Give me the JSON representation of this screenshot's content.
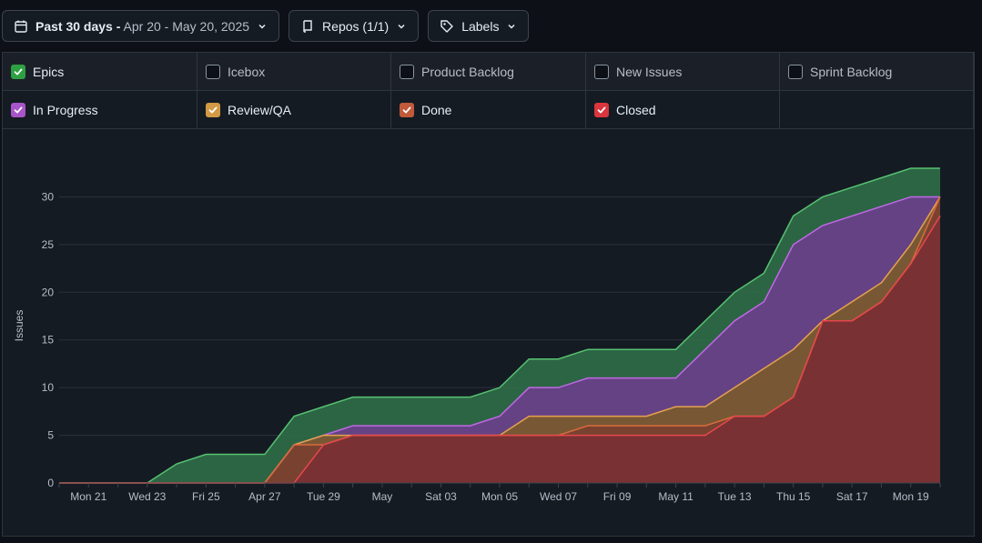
{
  "toolbar": {
    "date_range_label": "Past 30 days -",
    "date_range_value": "Apr 20 - May 20, 2025",
    "repos_label": "Repos (1/1)",
    "labels_label": "Labels"
  },
  "legend": {
    "items": [
      {
        "label": "Epics",
        "checked": true,
        "color": "#2ea043"
      },
      {
        "label": "Icebox",
        "checked": false,
        "color": "#8b949e"
      },
      {
        "label": "Product Backlog",
        "checked": false,
        "color": "#8b949e"
      },
      {
        "label": "New Issues",
        "checked": false,
        "color": "#8b949e"
      },
      {
        "label": "Sprint Backlog",
        "checked": false,
        "color": "#8b949e"
      },
      {
        "label": "In Progress",
        "checked": true,
        "color": "#a855c9"
      },
      {
        "label": "Review/QA",
        "checked": true,
        "color": "#d29a44"
      },
      {
        "label": "Done",
        "checked": true,
        "color": "#c15a3a"
      },
      {
        "label": "Closed",
        "checked": true,
        "color": "#d9363e"
      }
    ]
  },
  "chart_data": {
    "type": "area",
    "stacked": false,
    "xlabel": "",
    "ylabel": "Issues",
    "ylim": [
      0,
      33
    ],
    "yticks": [
      0,
      5,
      10,
      15,
      20,
      25,
      30
    ],
    "grid": true,
    "x": [
      "Apr 20",
      "Apr 21",
      "Apr 22",
      "Apr 23",
      "Apr 24",
      "Apr 25",
      "Apr 26",
      "Apr 27",
      "Apr 28",
      "Apr 29",
      "Apr 30",
      "May 01",
      "May 02",
      "May 03",
      "May 04",
      "May 05",
      "May 06",
      "May 07",
      "May 08",
      "May 09",
      "May 10",
      "May 11",
      "May 12",
      "May 13",
      "May 14",
      "May 15",
      "May 16",
      "May 17",
      "May 18",
      "May 19",
      "May 20"
    ],
    "xtick_labels": [
      "Mon 21",
      "Wed 23",
      "Fri 25",
      "Apr 27",
      "Tue 29",
      "May",
      "Sat 03",
      "Mon 05",
      "Wed 07",
      "Fri 09",
      "May 11",
      "Tue 13",
      "Thu 15",
      "Sat 17",
      "Mon 19"
    ],
    "series": [
      {
        "name": "Epics",
        "color": "#56c271",
        "fill": "#2f6b48",
        "values": [
          0,
          0,
          0,
          0,
          2,
          3,
          3,
          3,
          7,
          8,
          9,
          9,
          9,
          9,
          9,
          10,
          13,
          13,
          14,
          14,
          14,
          14,
          17,
          20,
          22,
          28,
          30,
          31,
          32,
          33,
          33
        ]
      },
      {
        "name": "In Progress",
        "color": "#c168e6",
        "fill": "#6a3f8a",
        "values": [
          0,
          0,
          0,
          0,
          0,
          0,
          0,
          0,
          4,
          5,
          6,
          6,
          6,
          6,
          6,
          7,
          10,
          10,
          11,
          11,
          11,
          11,
          14,
          17,
          19,
          25,
          27,
          28,
          29,
          30,
          30
        ]
      },
      {
        "name": "Review/QA",
        "color": "#e5a24f",
        "fill": "#7a5a2e",
        "values": [
          0,
          0,
          0,
          0,
          0,
          0,
          0,
          0,
          4,
          5,
          5,
          5,
          5,
          5,
          5,
          5,
          7,
          7,
          7,
          7,
          7,
          8,
          8,
          10,
          12,
          14,
          17,
          19,
          21,
          25,
          30
        ]
      },
      {
        "name": "Done",
        "color": "#d96a3c",
        "fill": "#7a4030",
        "values": [
          0,
          0,
          0,
          0,
          0,
          0,
          0,
          0,
          4,
          4,
          5,
          5,
          5,
          5,
          5,
          5,
          5,
          5,
          6,
          6,
          6,
          6,
          6,
          7,
          7,
          9,
          17,
          17,
          19,
          23,
          30
        ]
      },
      {
        "name": "Closed",
        "color": "#e5484d",
        "fill": "#7b3034",
        "values": [
          0,
          0,
          0,
          0,
          0,
          0,
          0,
          0,
          0,
          4,
          5,
          5,
          5,
          5,
          5,
          5,
          5,
          5,
          5,
          5,
          5,
          5,
          5,
          7,
          7,
          9,
          17,
          17,
          19,
          23,
          28
        ]
      }
    ]
  }
}
